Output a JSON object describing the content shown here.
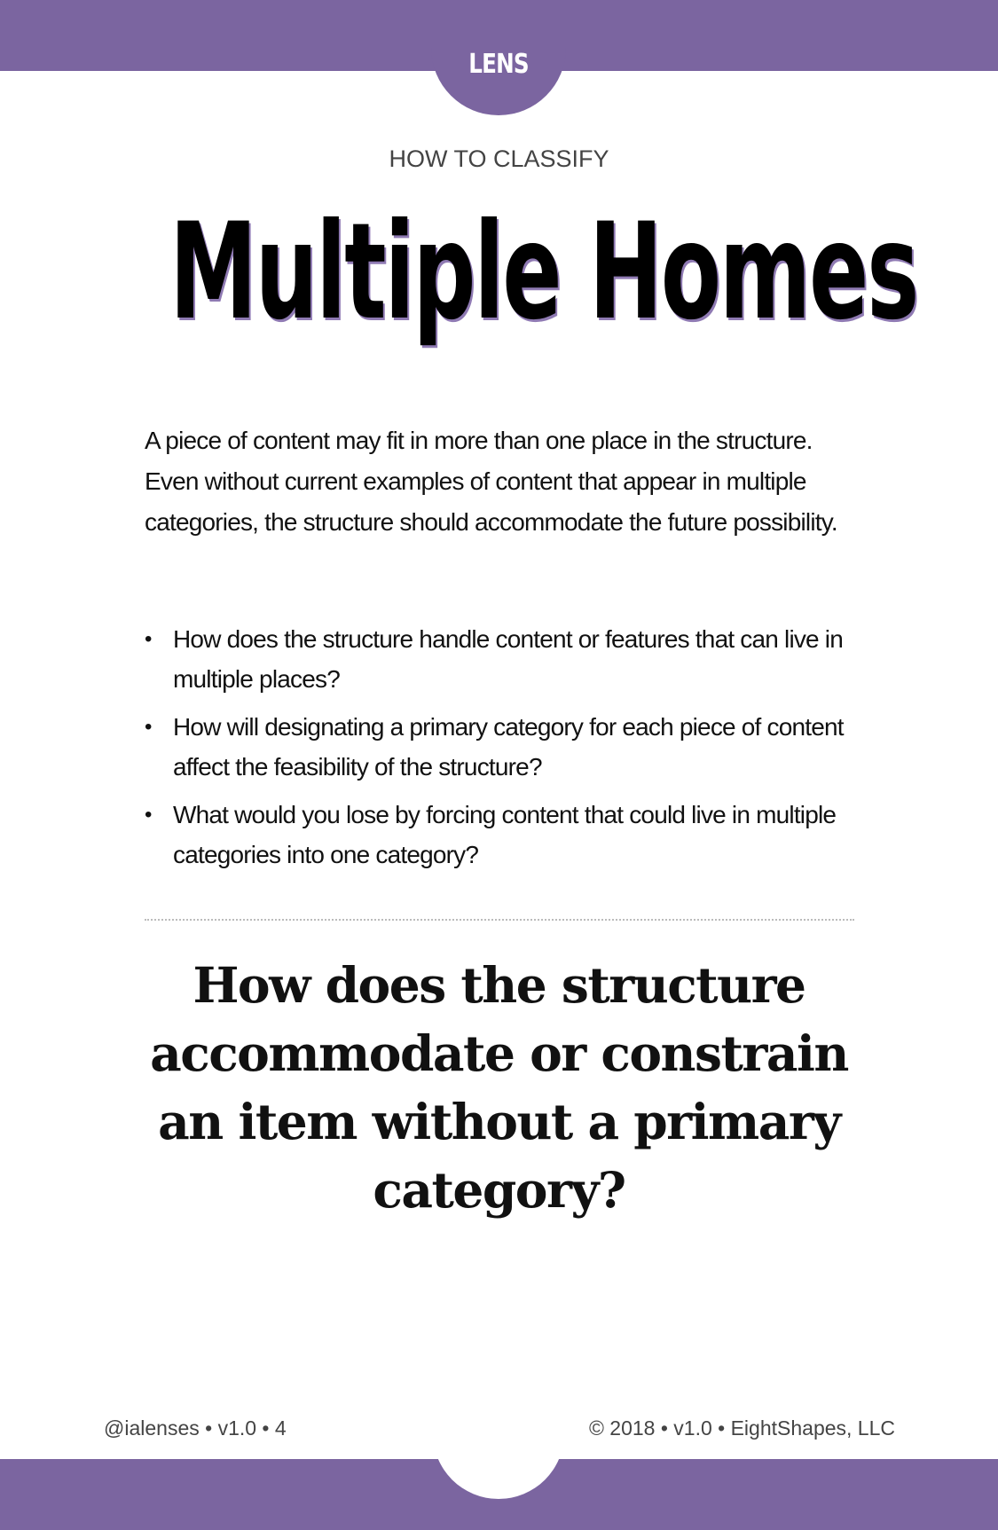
{
  "header": {
    "tab_label": "LENS"
  },
  "card": {
    "category": "HOW TO CLASSIFY",
    "title": "Multiple Homes",
    "intro": "A piece of content may fit in more than one place in the structure. Even without current examples of content that appear in multiple categories, the structure should accommodate the future possibility.",
    "bullet_symbol": "•",
    "bullets": [
      "How does the structure handle content or features that can live in multiple places?",
      "How will designating a primary category for each piece of content affect the feasibility of the structure?",
      "What would you lose by forcing content that could live in multiple categories into one category?"
    ],
    "question": "How does the structure accommodate or constrain an item without a primary category?"
  },
  "footer": {
    "left": "@ialenses • v1.0 •  4",
    "right": "© 2018 • v1.0 • EightShapes, LLC"
  },
  "colors": {
    "accent": "#7b65a0",
    "title_shadow": "#8f7ab3"
  }
}
